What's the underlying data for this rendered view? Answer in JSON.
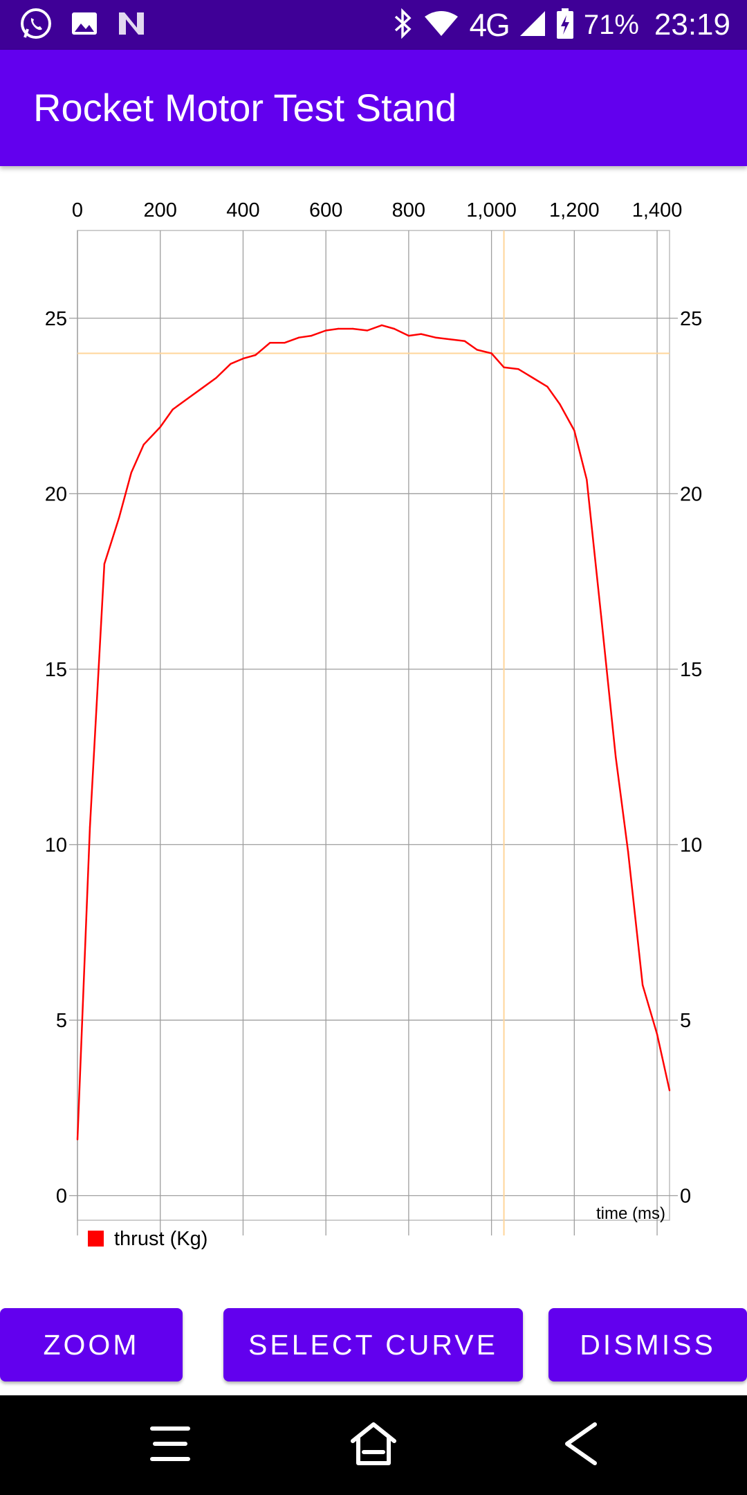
{
  "status_bar": {
    "battery": "71%",
    "time": "23:19",
    "network": "4G",
    "icons": [
      "whatsapp-icon",
      "image-icon",
      "notification-n-icon",
      "bluetooth-icon",
      "wifi-icon",
      "signal-icon",
      "battery-charging-icon"
    ]
  },
  "app_bar": {
    "title": "Rocket Motor Test Stand"
  },
  "colors": {
    "primary": "#6200ee",
    "status_bar": "#3f0097",
    "series": "#ff0000",
    "cursor": "#ffd59a",
    "grid": "#9e9e9e"
  },
  "chart_data": {
    "type": "line",
    "xlabel": "time (ms)",
    "xlim": [
      0,
      1430
    ],
    "ylim": [
      -0.7,
      27.5
    ],
    "x_ticks": [
      0,
      200,
      400,
      600,
      800,
      1000,
      1200,
      1400
    ],
    "x_tick_labels": [
      "0",
      "200",
      "400",
      "600",
      "800",
      "1,000",
      "1,200",
      "1,400"
    ],
    "y_ticks": [
      0,
      5,
      10,
      15,
      20,
      25
    ],
    "y_tick_labels": [
      "0",
      "5",
      "10",
      "15",
      "20",
      "25"
    ],
    "grid": true,
    "x_axis_position": "top",
    "y_axes": "left and right",
    "legend_position": "bottom-left",
    "series": [
      {
        "name": "thrust (Kg)",
        "color": "#ff0000",
        "x": [
          0,
          30,
          65,
          100,
          130,
          160,
          200,
          230,
          265,
          300,
          335,
          370,
          400,
          430,
          465,
          500,
          535,
          565,
          600,
          630,
          665,
          700,
          735,
          765,
          800,
          830,
          865,
          900,
          935,
          965,
          1000,
          1030,
          1065,
          1100,
          1135,
          1165,
          1200,
          1230,
          1265,
          1300,
          1330,
          1365,
          1400,
          1430
        ],
        "y": [
          1.6,
          10.5,
          18.0,
          19.3,
          20.6,
          21.4,
          21.9,
          22.4,
          22.7,
          23.0,
          23.3,
          23.7,
          23.85,
          23.95,
          24.3,
          24.3,
          24.45,
          24.5,
          24.65,
          24.7,
          24.7,
          24.65,
          24.8,
          24.7,
          24.5,
          24.55,
          24.45,
          24.4,
          24.35,
          24.1,
          24.0,
          23.6,
          23.55,
          23.3,
          23.05,
          22.55,
          21.8,
          20.4,
          16.5,
          12.5,
          9.8,
          6.0,
          4.6,
          3.0
        ]
      }
    ],
    "cursor": {
      "x": 1030,
      "y": 24.0
    }
  },
  "buttons": {
    "zoom": "ZOOM",
    "select_curve": "SELECT CURVE",
    "dismiss": "DISMISS"
  },
  "nav_bar": {
    "icons": [
      "menu-icon",
      "home-icon",
      "back-icon"
    ]
  }
}
